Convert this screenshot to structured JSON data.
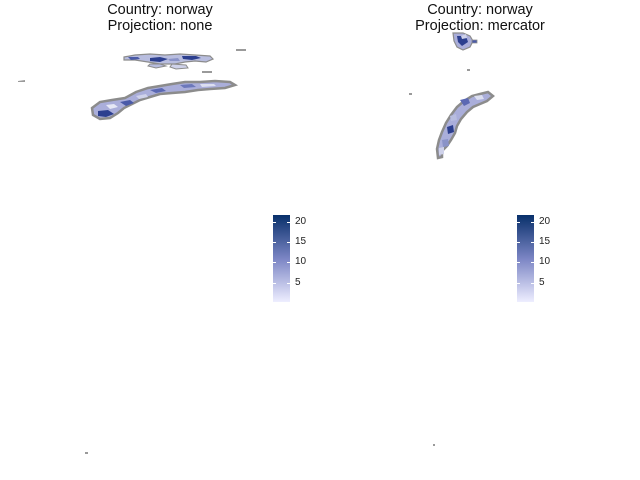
{
  "panels": [
    {
      "title_country": "Country: norway",
      "title_projection": "Projection: none"
    },
    {
      "title_country": "Country: norway",
      "title_projection": "Projection: mercator"
    }
  ],
  "legend": {
    "labels": [
      "20",
      "15",
      "10",
      "5"
    ],
    "min_value": 1,
    "max_value": 22,
    "color_low": "#eeeeff",
    "color_high": "#08306b"
  },
  "colors": {
    "border": "#8c8c8c",
    "fill_light": "#b8bddf",
    "fill_mid": "#8a93c8",
    "fill_dark": "#2c3f8f",
    "background": "#ffffff"
  }
}
